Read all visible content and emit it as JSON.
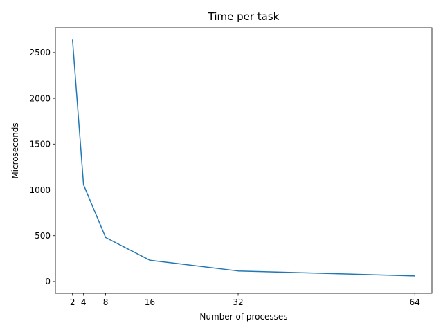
{
  "chart_data": {
    "type": "line",
    "title": "Time per task",
    "xlabel": "Number of processes",
    "ylabel": "Microseconds",
    "x": [
      2,
      4,
      8,
      16,
      32,
      64
    ],
    "series": [
      {
        "values": [
          2640,
          1055,
          480,
          232,
          115,
          61
        ]
      }
    ],
    "xticks": [
      2,
      4,
      8,
      16,
      32,
      64
    ],
    "yticks": [
      0,
      500,
      1000,
      1500,
      2000,
      2500
    ],
    "xlim": [
      -1.1,
      67.1
    ],
    "ylim": [
      -129,
      2771
    ],
    "grid": false,
    "line_color": "#1f77b4"
  }
}
